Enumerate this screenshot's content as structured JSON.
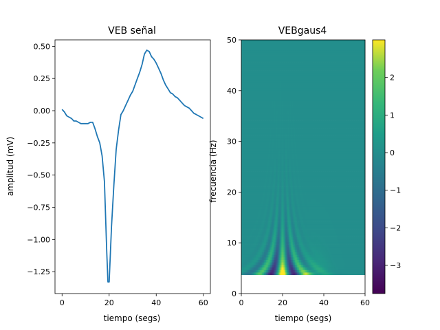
{
  "chart_data": [
    {
      "type": "line",
      "title": "VEB señal",
      "xlabel": "tiempo (segs)",
      "ylabel": "amplitud (mV)",
      "xlim": [
        -3,
        63
      ],
      "ylim": [
        -1.42,
        0.55
      ],
      "xticks": [
        0,
        20,
        40,
        60
      ],
      "xtick_labels": [
        "0",
        "20",
        "40",
        "60"
      ],
      "yticks": [
        0.5,
        0.25,
        0.0,
        -0.25,
        -0.5,
        -0.75,
        -1.0,
        -1.25
      ],
      "ytick_labels": [
        "0.50",
        "0.25",
        "0.00",
        "−0.25",
        "−0.50",
        "−0.75",
        "−1.00",
        "−1.25"
      ],
      "grid": false,
      "series": [
        {
          "color": "#1f77b4",
          "x": [
            0,
            1,
            2,
            3,
            4,
            5,
            6,
            7,
            8,
            9,
            10,
            11,
            12,
            13,
            14,
            15,
            16,
            17,
            18,
            19,
            19.5,
            20,
            21,
            22,
            23,
            24,
            25,
            26,
            27,
            28,
            29,
            30,
            31,
            32,
            33,
            34,
            35,
            36,
            37,
            38,
            39,
            40,
            41,
            42,
            43,
            44,
            45,
            46,
            47,
            48,
            49,
            50,
            51,
            52,
            53,
            54,
            55,
            56,
            57,
            58,
            59,
            60
          ],
          "y": [
            0.01,
            -0.01,
            -0.04,
            -0.05,
            -0.06,
            -0.08,
            -0.08,
            -0.09,
            -0.1,
            -0.1,
            -0.1,
            -0.1,
            -0.09,
            -0.09,
            -0.14,
            -0.2,
            -0.25,
            -0.35,
            -0.55,
            -1.1,
            -1.33,
            -1.33,
            -0.9,
            -0.58,
            -0.3,
            -0.15,
            -0.03,
            0.0,
            0.04,
            0.08,
            0.12,
            0.15,
            0.2,
            0.25,
            0.3,
            0.36,
            0.44,
            0.47,
            0.46,
            0.42,
            0.4,
            0.37,
            0.33,
            0.29,
            0.24,
            0.2,
            0.17,
            0.14,
            0.13,
            0.11,
            0.1,
            0.08,
            0.06,
            0.04,
            0.03,
            0.02,
            0.0,
            -0.02,
            -0.03,
            -0.04,
            -0.05,
            -0.06
          ]
        }
      ]
    },
    {
      "type": "heatmap",
      "title": "VEBgaus4",
      "xlabel": "tiempo (segs)",
      "ylabel": "frecuencia (Hz)",
      "xlim": [
        0,
        60
      ],
      "ylim": [
        0,
        50
      ],
      "xticks": [
        0,
        20,
        40,
        60
      ],
      "xtick_labels": [
        "0",
        "20",
        "40",
        "60"
      ],
      "yticks": [
        0,
        10,
        20,
        30,
        40,
        50
      ],
      "ytick_labels": [
        "0",
        "10",
        "20",
        "30",
        "40",
        "50"
      ],
      "data_ylim": [
        3.7,
        50
      ],
      "colormap": "viridis",
      "colorbar": {
        "range": [
          -3.75,
          3.0
        ],
        "ticks": [
          2,
          1,
          0,
          -1,
          -2,
          -3
        ],
        "tick_labels": [
          "2",
          "1",
          "0",
          "−1",
          "−2",
          "−3"
        ]
      }
    }
  ]
}
